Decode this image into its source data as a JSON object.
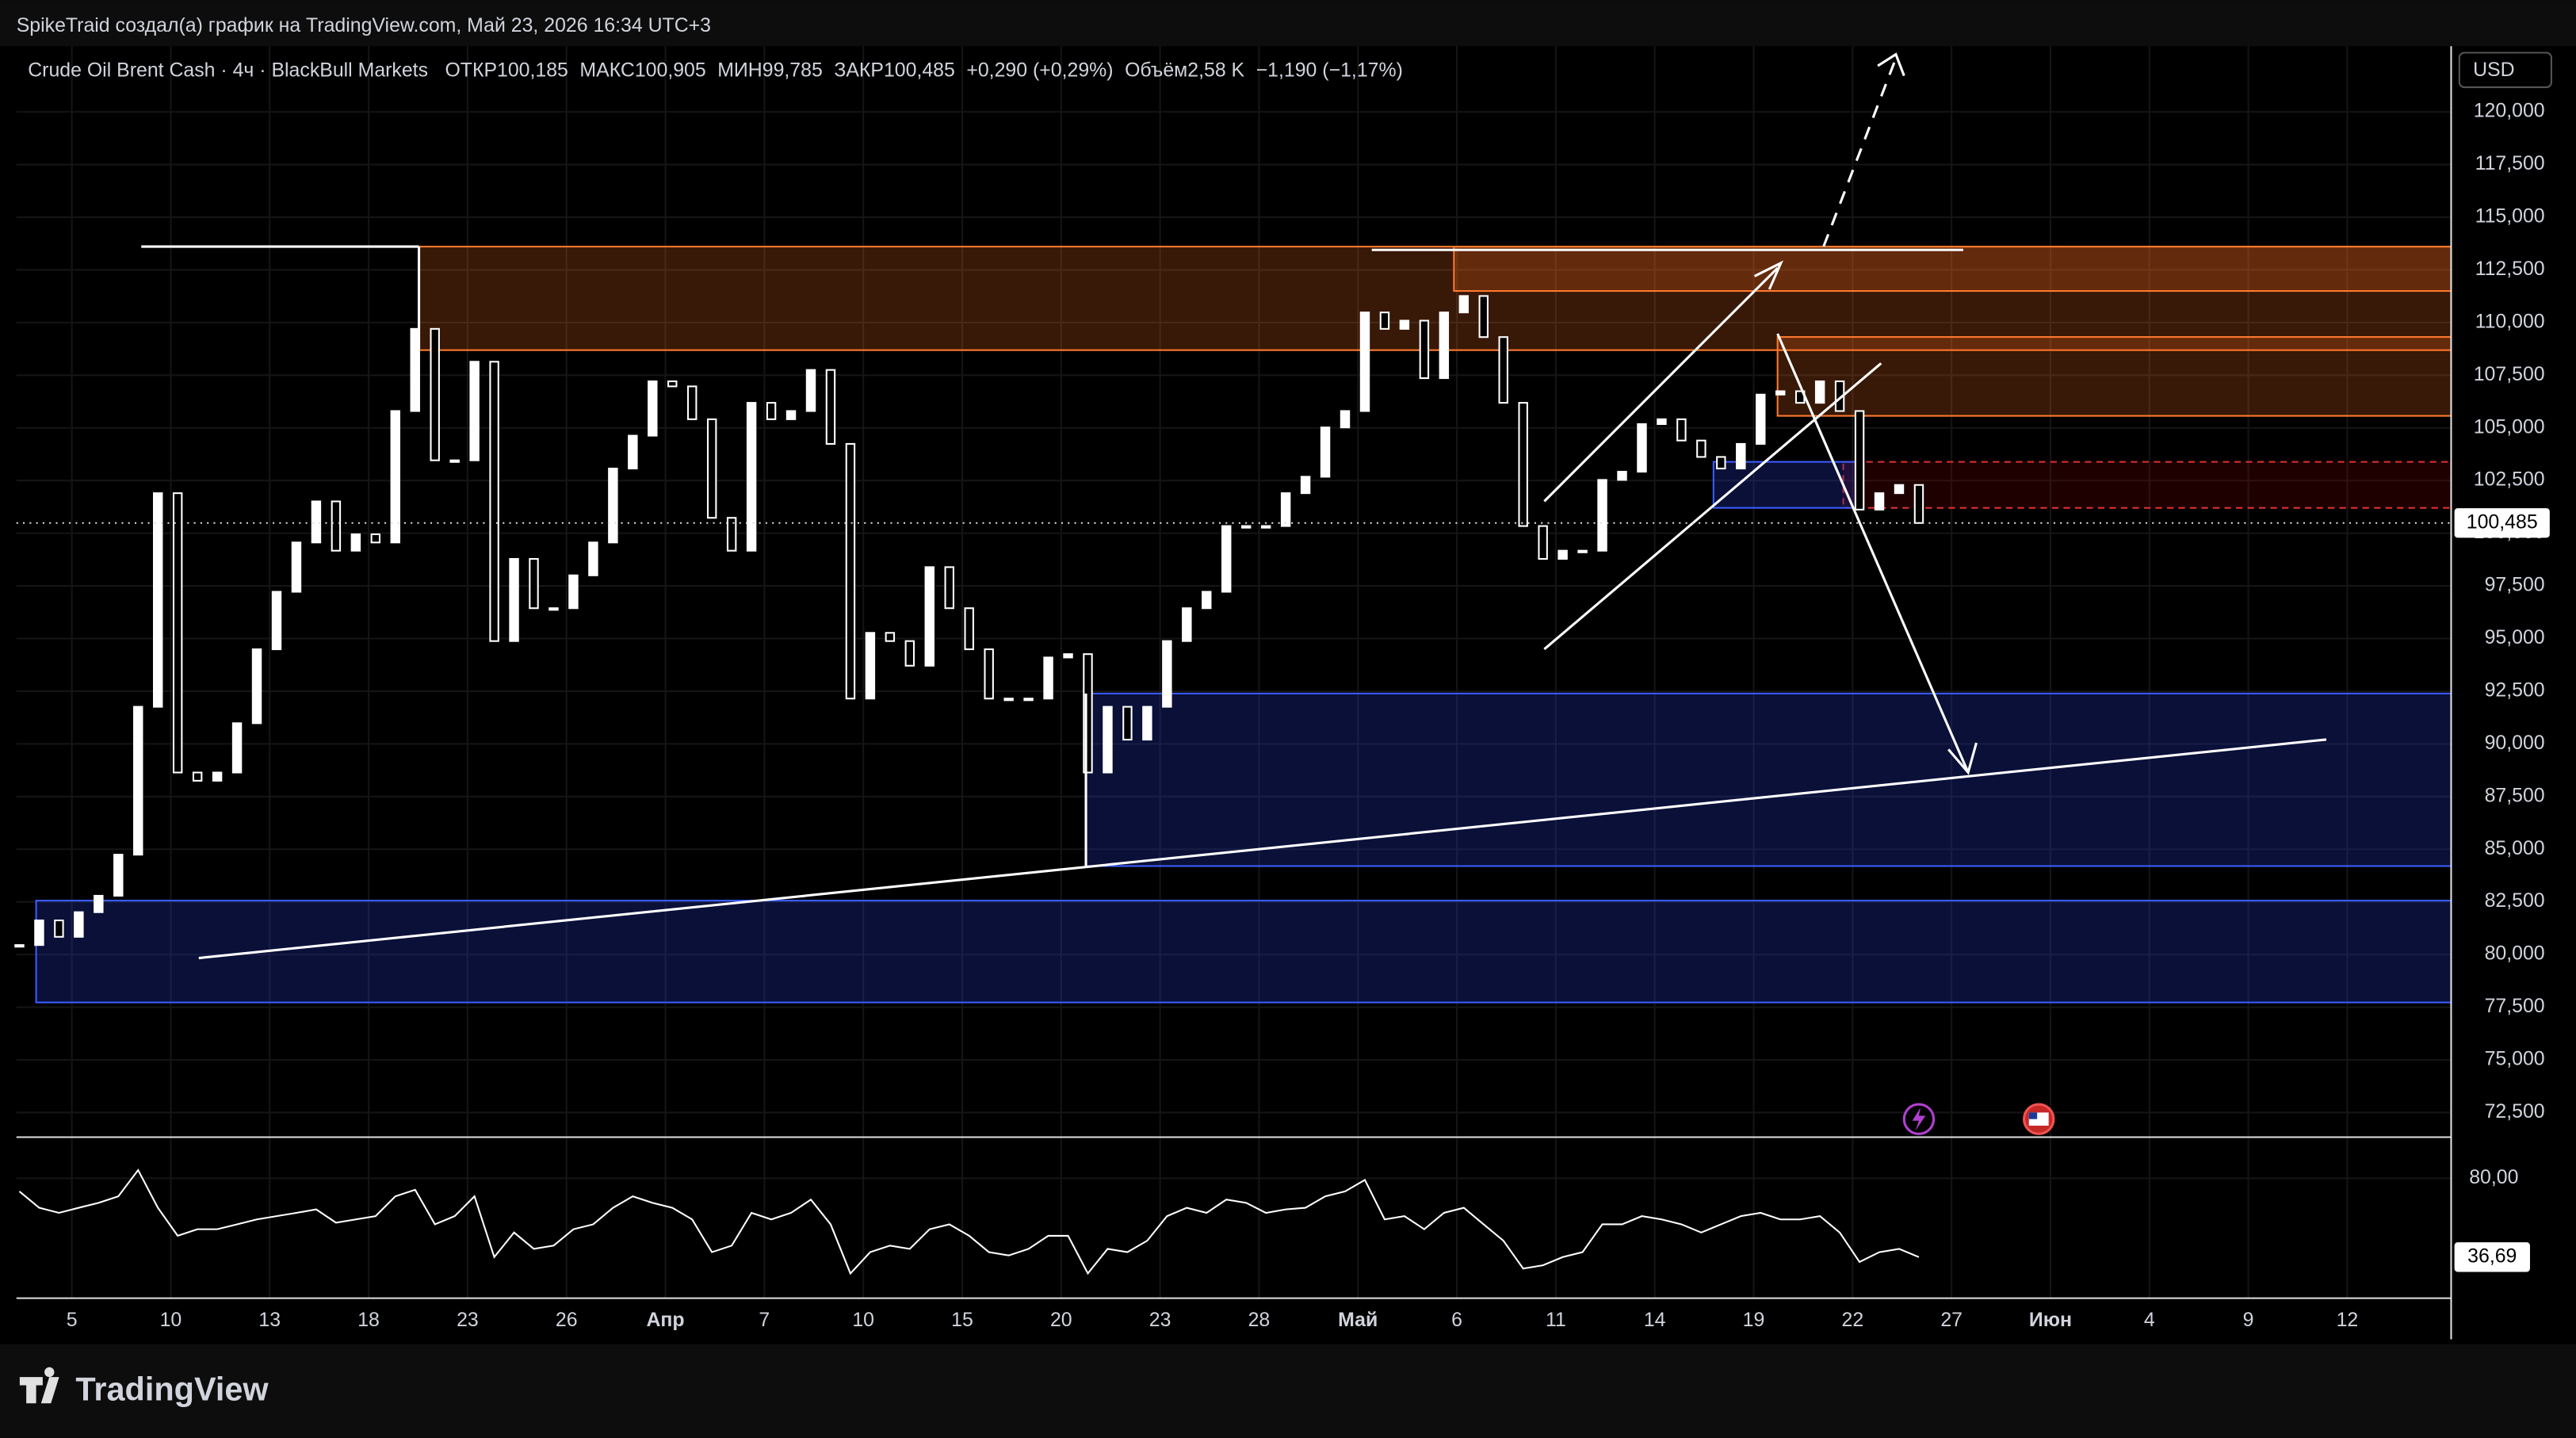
{
  "header": {
    "attribution": "SpikeTraid создал(а) график на TradingView.com, Май 23, 2026 16:34 UTC+3",
    "logo": "TradingView"
  },
  "chart_data": [
    {
      "type": "candlestick",
      "title": "Crude Oil Brent Cash · 4ч · BlackBull Markets",
      "legend": [
        "ОТКР100,185",
        "МАКС100,905",
        "МИН99,785",
        "ЗАКР100,485",
        "+0,290 (+0,29%)",
        "Объём2,58 K",
        "−1,190 (−1,17%)"
      ],
      "currency": "USD",
      "color": "#ffffff",
      "grid": true,
      "x": [
        -0.53,
        -0.33,
        -0.13,
        0.07,
        0.27,
        0.47,
        0.67,
        0.87,
        1.07,
        1.27,
        1.47,
        1.67,
        1.87,
        2.07,
        2.27,
        2.47,
        2.67,
        2.87,
        3.07,
        3.27,
        3.47,
        3.67,
        3.87,
        4.07,
        4.27,
        4.47,
        4.67,
        4.87,
        5.07,
        5.27,
        5.47,
        5.67,
        5.87,
        6.07,
        6.27,
        6.47,
        6.67,
        6.87,
        7.07,
        7.27,
        7.47,
        7.67,
        7.87,
        8.07,
        8.27,
        8.47,
        8.67,
        8.87,
        9.07,
        9.27,
        9.47,
        9.67,
        9.87,
        10.07,
        10.27,
        10.47,
        10.67,
        10.87,
        11.07,
        11.27,
        11.47,
        11.67,
        11.87,
        12.07,
        12.27,
        12.47,
        12.67,
        12.87,
        13.07,
        13.27,
        13.47,
        13.67,
        13.87,
        14.07,
        14.27,
        14.47,
        14.67,
        14.87,
        15.07,
        15.27,
        15.47,
        15.67,
        15.87,
        16.07,
        16.27,
        16.47,
        16.67,
        16.87,
        17.07,
        17.27,
        17.47,
        17.67,
        17.87,
        18.07,
        18.27,
        18.47,
        18.67
      ],
      "values": [
        80450,
        81620,
        80840,
        82010,
        82790,
        84740,
        91760,
        101900,
        88640,
        88250,
        88640,
        90980,
        94490,
        97220,
        99560,
        101510,
        99170,
        99950,
        99560,
        105800,
        109700,
        103460,
        103460,
        108140,
        94880,
        98780,
        96440,
        96440,
        98000,
        99560,
        103070,
        104630,
        107210,
        106970,
        105410,
        100730,
        99170,
        106190,
        105410,
        105800,
        107750,
        104240,
        92150,
        95270,
        94880,
        93710,
        98390,
        96440,
        94490,
        92150,
        92150,
        92150,
        94100,
        94260,
        88640,
        91760,
        90200,
        91760,
        94880,
        96440,
        97220,
        100340,
        100340,
        100340,
        101900,
        102680,
        105020,
        105800,
        110480,
        109700,
        110090,
        107360,
        110480,
        111260,
        109310,
        106190,
        100340,
        98780,
        99170,
        99170,
        102530,
        102920,
        105180,
        105410,
        104400,
        103620,
        103070,
        104240,
        106580,
        106740,
        106190,
        107210,
        105800,
        101120,
        101900,
        102290,
        100485
      ],
      "xlim": [
        -0.56,
        24.05
      ],
      "xticks": [
        {
          "value": 0,
          "label": "5"
        },
        {
          "value": 1,
          "label": "10"
        },
        {
          "value": 2,
          "label": "13"
        },
        {
          "value": 3,
          "label": "18"
        },
        {
          "value": 4,
          "label": "23"
        },
        {
          "value": 5,
          "label": "26"
        },
        {
          "value": 6,
          "label": "Апр"
        },
        {
          "value": 7,
          "label": "7"
        },
        {
          "value": 8,
          "label": "10"
        },
        {
          "value": 9,
          "label": "15"
        },
        {
          "value": 10,
          "label": "20"
        },
        {
          "value": 11,
          "label": "23"
        },
        {
          "value": 12,
          "label": "28"
        },
        {
          "value": 13,
          "label": "Май"
        },
        {
          "value": 14,
          "label": "6"
        },
        {
          "value": 15,
          "label": "11"
        },
        {
          "value": 16,
          "label": "14"
        },
        {
          "value": 17,
          "label": "19"
        },
        {
          "value": 18,
          "label": "22"
        },
        {
          "value": 19,
          "label": "27"
        },
        {
          "value": 20,
          "label": "Июн"
        },
        {
          "value": 21,
          "label": "4"
        },
        {
          "value": 22,
          "label": "9"
        },
        {
          "value": 23,
          "label": "12"
        }
      ],
      "ylim": [
        71330,
        123120
      ],
      "yticks": [
        {
          "value": 120000,
          "label": "120,000"
        },
        {
          "value": 117500,
          "label": "117,500"
        },
        {
          "value": 115000,
          "label": "115,000"
        },
        {
          "value": 112500,
          "label": "112,500"
        },
        {
          "value": 110000,
          "label": "110,000"
        },
        {
          "value": 107500,
          "label": "107,500"
        },
        {
          "value": 105000,
          "label": "105,000"
        },
        {
          "value": 102500,
          "label": "102,500"
        },
        {
          "value": 100000,
          "label": "100,000"
        },
        {
          "value": 97500,
          "label": "97,500"
        },
        {
          "value": 95000,
          "label": "95,000"
        },
        {
          "value": 92500,
          "label": "92,500"
        },
        {
          "value": 90000,
          "label": "90,000"
        },
        {
          "value": 87500,
          "label": "87,500"
        },
        {
          "value": 85000,
          "label": "85,000"
        },
        {
          "value": 82500,
          "label": "82,500"
        },
        {
          "value": 80000,
          "label": "80,000"
        },
        {
          "value": 77500,
          "label": "77,500"
        },
        {
          "value": 75000,
          "label": "75,000"
        },
        {
          "value": 72500,
          "label": "72,500"
        }
      ],
      "last_price": {
        "value": 100485,
        "label": "100,485"
      }
    },
    {
      "type": "line",
      "color": "#ffffff",
      "values": [
        72.8,
        63.8,
        61,
        63.8,
        66.5,
        70.1,
        84.5,
        63.8,
        48.4,
        52,
        52,
        54.7,
        57.4,
        59.2,
        61,
        62.9,
        55.6,
        57.4,
        59.2,
        70.1,
        73.7,
        54.7,
        59.2,
        70.1,
        36.7,
        50.2,
        41.2,
        43,
        52,
        54.7,
        63.8,
        70.1,
        66.5,
        63.8,
        57.4,
        39.4,
        43,
        61,
        57.4,
        61,
        68.3,
        54.7,
        27.7,
        39.4,
        43,
        41.2,
        52,
        54.7,
        48.4,
        39.4,
        37.6,
        41.2,
        48.4,
        48.4,
        27.7,
        41.2,
        39.4,
        45.7,
        59.2,
        63.8,
        61,
        68.3,
        66.5,
        61,
        62.9,
        63.8,
        70.1,
        72.8,
        79.1,
        57.4,
        59.2,
        52,
        61,
        63.8,
        54.7,
        45.7,
        30.4,
        32.2,
        36.7,
        39.4,
        54.7,
        54.7,
        59.2,
        57.4,
        54.7,
        50.2,
        54.7,
        59.2,
        61,
        57.4,
        57.4,
        59.2,
        50.2,
        34,
        39.4,
        41.2,
        36.69
      ],
      "ylim": [
        14.1,
        100.8
      ],
      "yticks": [
        {
          "value": 80,
          "label": "80,00"
        }
      ],
      "last_value": {
        "value": 36.69,
        "label": "36,69"
      }
    }
  ]
}
